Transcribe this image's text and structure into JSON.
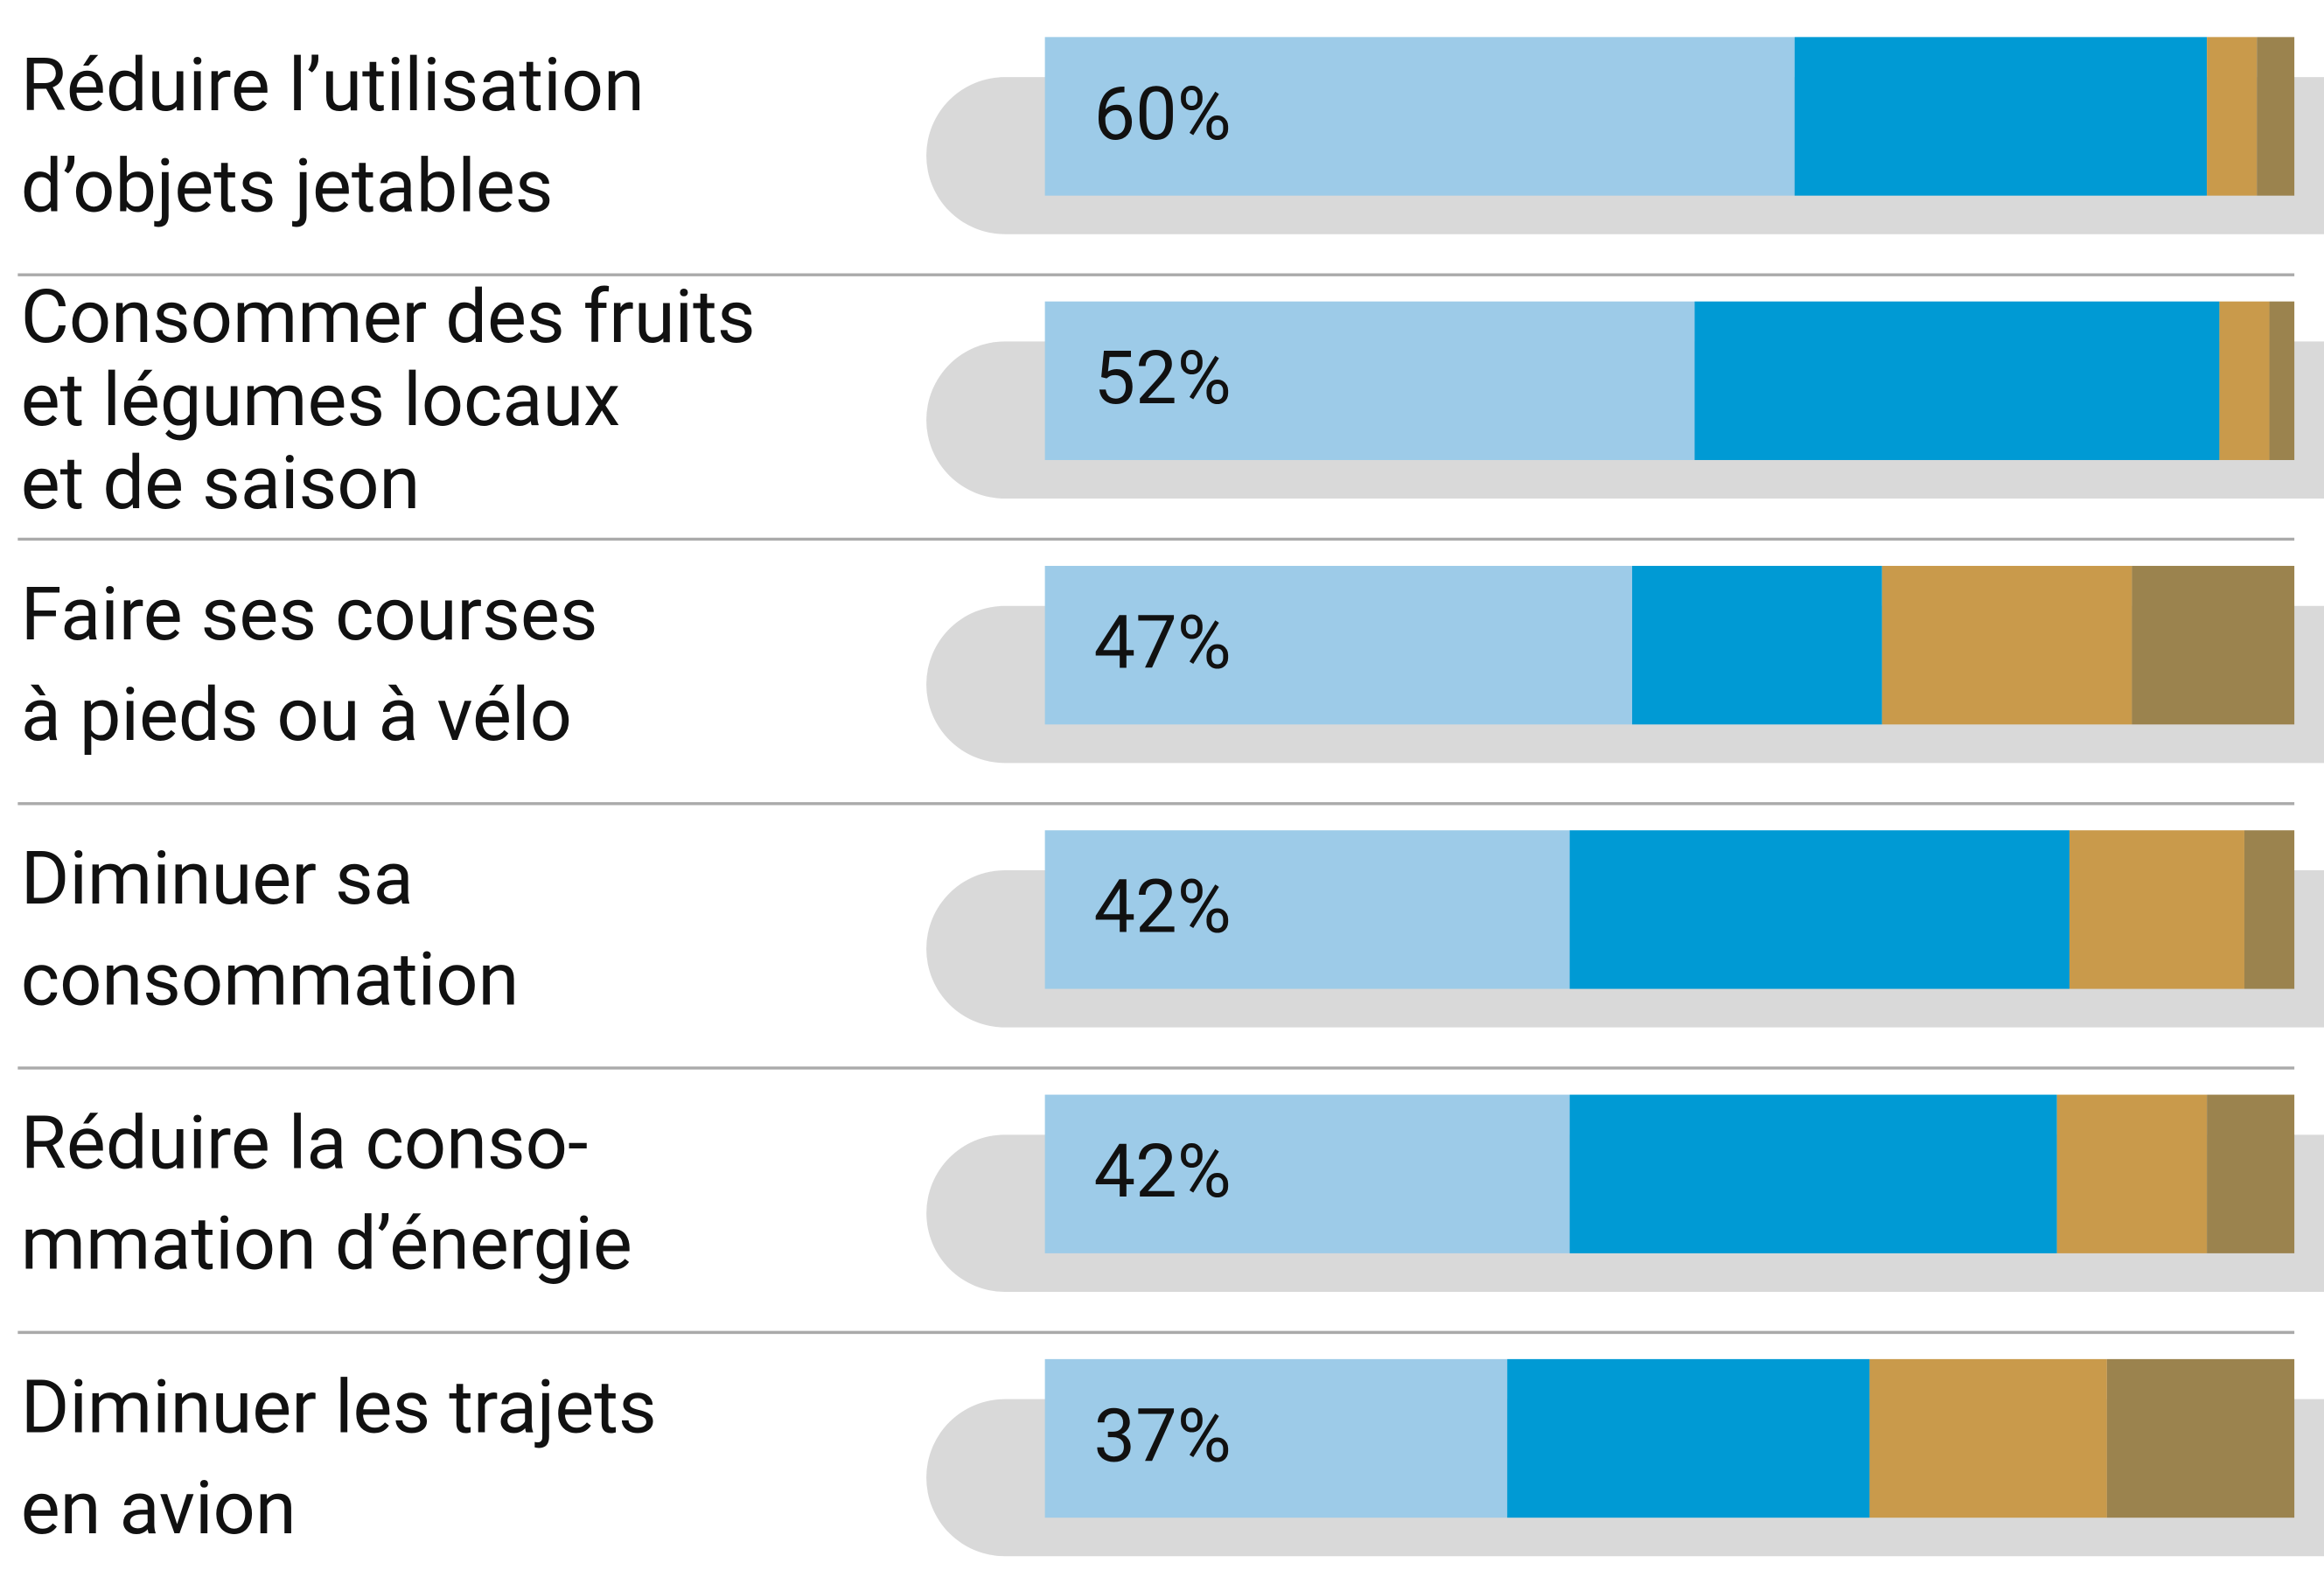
{
  "chart_data": {
    "type": "stacked-bar-horizontal",
    "categories": [
      "Réduire l’utilisation\nd’objets jetables",
      "Consommer des fruits\net légumes locaux\net de saison",
      "Faire ses courses\nà pieds ou à vélo",
      "Diminuer sa\nconsommation",
      "Réduire la conso-\nmmation d’énergie",
      "Diminuer les trajets\nen avion"
    ],
    "series": [
      {
        "color": "#9dcbe8",
        "values": [
          60,
          52,
          47,
          42,
          42,
          37
        ],
        "value_labels": [
          "60%",
          "52%",
          "47%",
          "42%",
          "42%",
          "37%"
        ]
      },
      {
        "color": "#009ad4",
        "values": [
          33,
          42,
          20,
          40,
          39,
          29
        ]
      },
      {
        "color": "#c99a4b",
        "values": [
          4,
          4,
          20,
          14,
          12,
          19
        ]
      },
      {
        "color": "#9b834e",
        "values": [
          3,
          2,
          13,
          4,
          7,
          15
        ]
      }
    ],
    "xlim": [
      0,
      100
    ]
  }
}
